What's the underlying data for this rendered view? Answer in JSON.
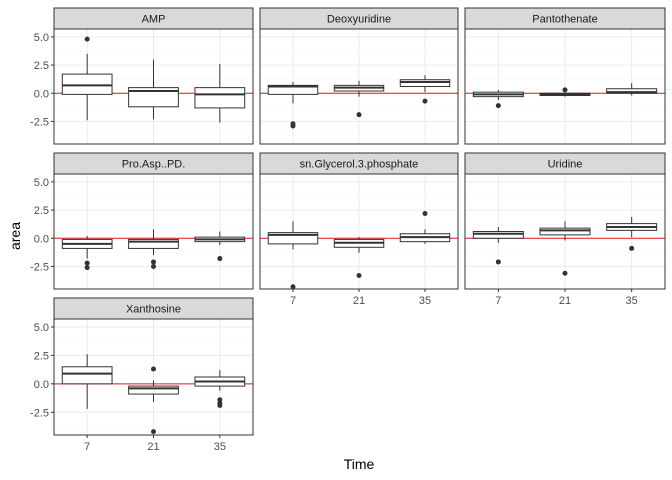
{
  "chart_data": {
    "type": "boxplot-facets",
    "xlabel": "Time",
    "ylabel": "area",
    "categories": [
      "7",
      "21",
      "35"
    ],
    "y_ticks": [
      5.0,
      2.5,
      0.0,
      -2.5
    ],
    "y_tick_labels": [
      "5.0",
      "2.5",
      "0.0",
      "-2.5"
    ],
    "ylim": [
      -4.5,
      5.7
    ],
    "reference_line_y": 0,
    "colors": {
      "reference_line": "#e41a1c",
      "strip_fill": "#d9d9d9",
      "panel_border": "#333333",
      "grid": "#ebebeb",
      "outlier": "#333333"
    },
    "panels": [
      {
        "name": "AMP",
        "boxes": [
          {
            "x": "7",
            "lower": -2.4,
            "q1": -0.1,
            "median": 0.7,
            "q3": 1.7,
            "upper": 3.5,
            "outliers": [
              4.8
            ]
          },
          {
            "x": "21",
            "lower": -2.3,
            "q1": -1.2,
            "median": 0.2,
            "q3": 0.5,
            "upper": 3.0,
            "outliers": []
          },
          {
            "x": "35",
            "lower": -2.6,
            "q1": -1.3,
            "median": -0.1,
            "q3": 0.5,
            "upper": 2.6,
            "outliers": []
          }
        ]
      },
      {
        "name": "Deoxyuridine",
        "boxes": [
          {
            "x": "7",
            "lower": -0.9,
            "q1": -0.1,
            "median": 0.6,
            "q3": 0.7,
            "upper": 1.0,
            "outliers": [
              -2.7,
              -2.9
            ]
          },
          {
            "x": "21",
            "lower": -0.3,
            "q1": 0.2,
            "median": 0.5,
            "q3": 0.7,
            "upper": 1.1,
            "outliers": [
              -1.9
            ]
          },
          {
            "x": "35",
            "lower": 0.1,
            "q1": 0.6,
            "median": 1.0,
            "q3": 1.2,
            "upper": 1.6,
            "outliers": [
              -0.7
            ]
          }
        ]
      },
      {
        "name": "Pantothenate",
        "boxes": [
          {
            "x": "7",
            "lower": -0.6,
            "q1": -0.3,
            "median": -0.1,
            "q3": 0.1,
            "upper": 0.3,
            "outliers": [
              -1.1
            ]
          },
          {
            "x": "21",
            "lower": -0.3,
            "q1": -0.2,
            "median": -0.1,
            "q3": 0.0,
            "upper": 0.2,
            "outliers": [
              0.3
            ]
          },
          {
            "x": "35",
            "lower": -0.2,
            "q1": 0.0,
            "median": 0.1,
            "q3": 0.4,
            "upper": 0.9,
            "outliers": []
          }
        ]
      },
      {
        "name": "Pro.Asp..PD.",
        "boxes": [
          {
            "x": "7",
            "lower": -1.8,
            "q1": -0.9,
            "median": -0.5,
            "q3": -0.1,
            "upper": 0.2,
            "outliers": [
              -2.2,
              -2.6
            ]
          },
          {
            "x": "21",
            "lower": -1.5,
            "q1": -0.9,
            "median": -0.3,
            "q3": -0.1,
            "upper": 0.8,
            "outliers": [
              -2.1,
              -2.5
            ]
          },
          {
            "x": "35",
            "lower": -0.6,
            "q1": -0.3,
            "median": -0.1,
            "q3": 0.1,
            "upper": 0.6,
            "outliers": [
              -1.8
            ]
          }
        ]
      },
      {
        "name": "sn.Glycerol.3.phosphate",
        "boxes": [
          {
            "x": "7",
            "lower": -1.0,
            "q1": -0.5,
            "median": 0.3,
            "q3": 0.5,
            "upper": 1.5,
            "outliers": [
              -4.3
            ]
          },
          {
            "x": "21",
            "lower": -1.3,
            "q1": -0.8,
            "median": -0.4,
            "q3": -0.1,
            "upper": 0.1,
            "outliers": [
              -3.3
            ]
          },
          {
            "x": "35",
            "lower": -0.5,
            "q1": -0.3,
            "median": 0.1,
            "q3": 0.4,
            "upper": 0.8,
            "outliers": [
              2.2
            ]
          }
        ]
      },
      {
        "name": "Uridine",
        "boxes": [
          {
            "x": "7",
            "lower": -0.4,
            "q1": 0.0,
            "median": 0.4,
            "q3": 0.6,
            "upper": 1.0,
            "outliers": [
              -2.1
            ]
          },
          {
            "x": "21",
            "lower": -0.2,
            "q1": 0.3,
            "median": 0.7,
            "q3": 0.9,
            "upper": 1.5,
            "outliers": [
              -3.1
            ]
          },
          {
            "x": "35",
            "lower": 0.1,
            "q1": 0.7,
            "median": 1.0,
            "q3": 1.3,
            "upper": 1.9,
            "outliers": [
              -0.9
            ]
          }
        ]
      },
      {
        "name": "Xanthosine",
        "boxes": [
          {
            "x": "7",
            "lower": -2.2,
            "q1": 0.0,
            "median": 0.9,
            "q3": 1.5,
            "upper": 2.6,
            "outliers": []
          },
          {
            "x": "21",
            "lower": -1.6,
            "q1": -0.9,
            "median": -0.4,
            "q3": -0.2,
            "upper": 0.3,
            "outliers": [
              1.3,
              -4.2
            ]
          },
          {
            "x": "35",
            "lower": -0.6,
            "q1": -0.2,
            "median": 0.2,
            "q3": 0.6,
            "upper": 1.2,
            "outliers": [
              -1.4,
              -1.7,
              -1.9
            ]
          }
        ]
      }
    ]
  }
}
